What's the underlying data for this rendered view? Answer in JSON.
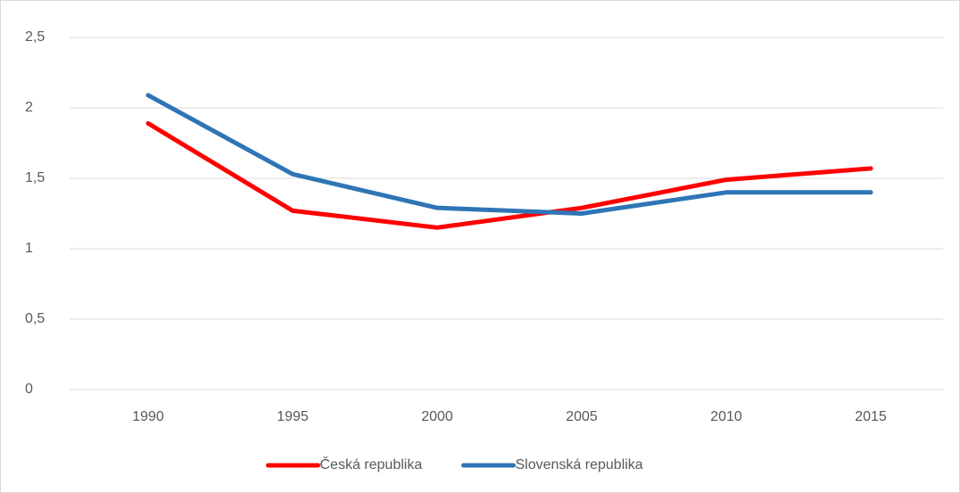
{
  "chart_data": {
    "type": "line",
    "categories": [
      "1990",
      "1995",
      "2000",
      "2005",
      "2010",
      "2015"
    ],
    "series": [
      {
        "name": "Česká republika",
        "color": "#ff0000",
        "values": [
          1.89,
          1.27,
          1.15,
          1.29,
          1.49,
          1.57
        ]
      },
      {
        "name": "Slovenská republika",
        "color": "#2e75b6",
        "values": [
          2.09,
          1.53,
          1.29,
          1.25,
          1.4,
          1.4
        ]
      }
    ],
    "ylim": [
      0,
      2.5
    ],
    "yticks": [
      0,
      {
        "value": 0.5,
        "label": "0,5"
      },
      1,
      {
        "value": 1.5,
        "label": "1,5"
      },
      2,
      {
        "value": 2.5,
        "label": "2,5"
      }
    ],
    "grid": true,
    "legend": "bottom"
  }
}
